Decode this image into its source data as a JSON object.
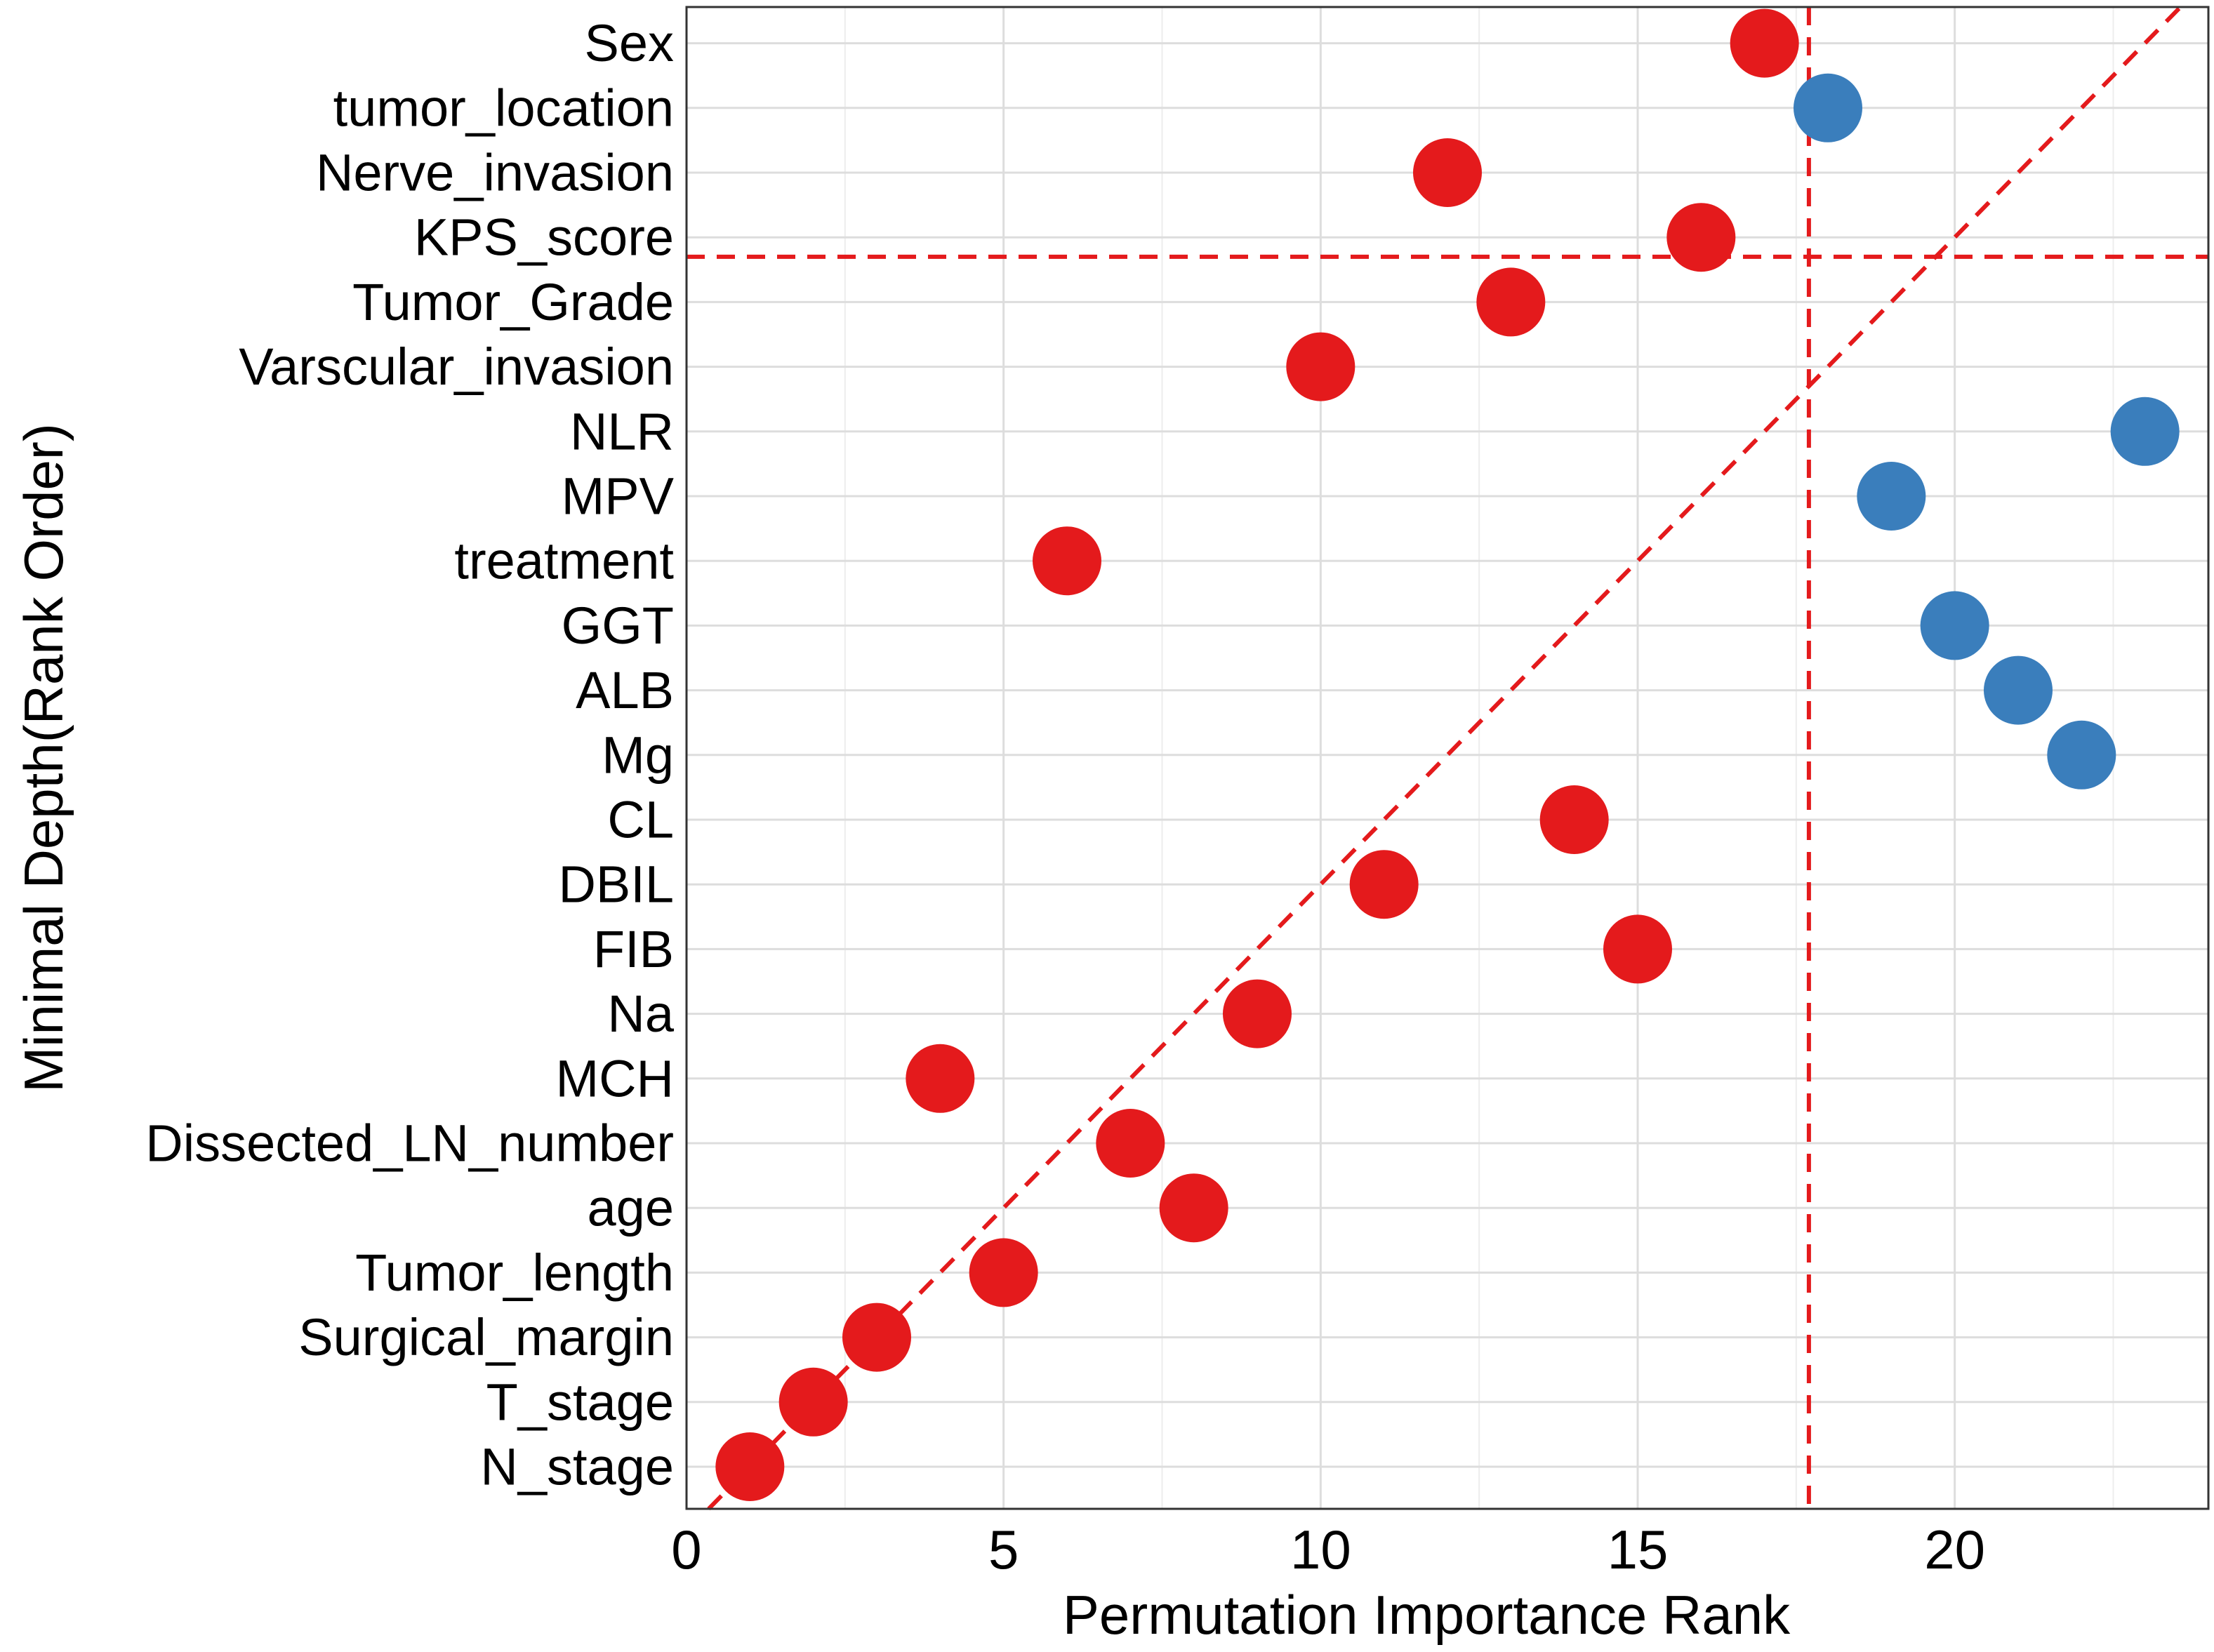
{
  "chart_data": {
    "type": "scatter",
    "title": "",
    "xlabel": "Permutation Importance Rank",
    "ylabel": "Minimal Depth(Rank Order)",
    "xlim": [
      0,
      24
    ],
    "x_ticks": [
      0,
      5,
      10,
      15,
      20
    ],
    "x_tick_labels": [
      "0",
      "5",
      "10",
      "15",
      "20"
    ],
    "y_categories_bottom_to_top": [
      "N_stage",
      "T_stage",
      "Surgical_margin",
      "Tumor_length",
      "age",
      "Dissected_LN_number",
      "MCH",
      "Na",
      "FIB",
      "DBIL",
      "CL",
      "Mg",
      "ALB",
      "GGT",
      "treatment",
      "MPV",
      "NLR",
      "Varscular_invasion",
      "Tumor_Grade",
      "KPS_score",
      "Nerve_invasion",
      "tumor_location",
      "Sex"
    ],
    "grid": true,
    "reference_lines": {
      "diagonal_slope": 1,
      "diagonal_intercept": 0,
      "vertical_x": 17.7,
      "horizontal_y": 19.7,
      "style": "dashed",
      "color": "#E41A1C"
    },
    "colors": {
      "red": "#E41A1C",
      "blue": "#3A7EBC"
    },
    "points": [
      {
        "label": "N_stage",
        "x": 1,
        "y": 1,
        "color": "red"
      },
      {
        "label": "T_stage",
        "x": 2,
        "y": 2,
        "color": "red"
      },
      {
        "label": "Surgical_margin",
        "x": 3,
        "y": 3,
        "color": "red"
      },
      {
        "label": "Tumor_length",
        "x": 5,
        "y": 4,
        "color": "red"
      },
      {
        "label": "age",
        "x": 8,
        "y": 5,
        "color": "red"
      },
      {
        "label": "Dissected_LN_number",
        "x": 7,
        "y": 6,
        "color": "red"
      },
      {
        "label": "MCH",
        "x": 4,
        "y": 7,
        "color": "red"
      },
      {
        "label": "Na",
        "x": 9,
        "y": 8,
        "color": "red"
      },
      {
        "label": "FIB",
        "x": 15,
        "y": 9,
        "color": "red"
      },
      {
        "label": "DBIL",
        "x": 11,
        "y": 10,
        "color": "red"
      },
      {
        "label": "CL",
        "x": 14,
        "y": 11,
        "color": "red"
      },
      {
        "label": "Mg",
        "x": 22,
        "y": 12,
        "color": "blue"
      },
      {
        "label": "ALB",
        "x": 21,
        "y": 13,
        "color": "blue"
      },
      {
        "label": "GGT",
        "x": 20,
        "y": 14,
        "color": "blue"
      },
      {
        "label": "treatment",
        "x": 6,
        "y": 15,
        "color": "red"
      },
      {
        "label": "MPV",
        "x": 19,
        "y": 16,
        "color": "blue"
      },
      {
        "label": "NLR",
        "x": 23,
        "y": 17,
        "color": "blue"
      },
      {
        "label": "Varscular_invasion",
        "x": 10,
        "y": 18,
        "color": "red"
      },
      {
        "label": "Tumor_Grade",
        "x": 13,
        "y": 19,
        "color": "red"
      },
      {
        "label": "KPS_score",
        "x": 16,
        "y": 20,
        "color": "red"
      },
      {
        "label": "Nerve_invasion",
        "x": 12,
        "y": 21,
        "color": "red"
      },
      {
        "label": "tumor_location",
        "x": 18,
        "y": 22,
        "color": "blue"
      },
      {
        "label": "Sex",
        "x": 17,
        "y": 23,
        "color": "red"
      }
    ]
  }
}
